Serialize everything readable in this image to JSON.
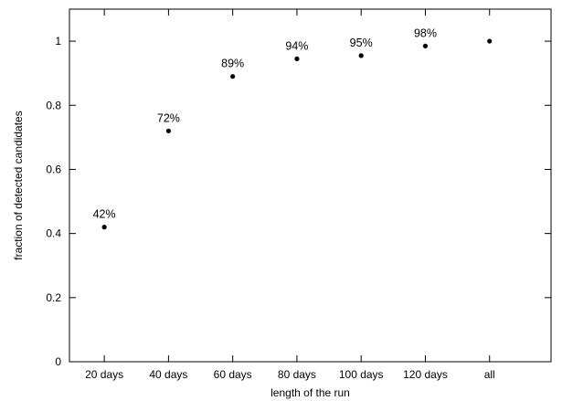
{
  "chart_data": {
    "type": "scatter",
    "xlabel": "length of the run",
    "ylabel": "fraction of detected candidates",
    "categories": [
      "20 days",
      "40 days",
      "60 days",
      "80 days",
      "100 days",
      "120 days",
      "all"
    ],
    "values": [
      0.42,
      0.72,
      0.89,
      0.945,
      0.955,
      0.985,
      1.0
    ],
    "data_labels": [
      "42%",
      "72%",
      "89%",
      "94%",
      "95%",
      "98%",
      ""
    ],
    "ylim": [
      0,
      1.1
    ],
    "yticks": [
      0,
      0.2,
      0.4,
      0.6,
      0.8,
      1
    ],
    "ytick_labels": [
      "0",
      "0.2",
      "0.4",
      "0.6",
      "0.8",
      "1"
    ],
    "grid": false,
    "marker_color": "#000000"
  }
}
